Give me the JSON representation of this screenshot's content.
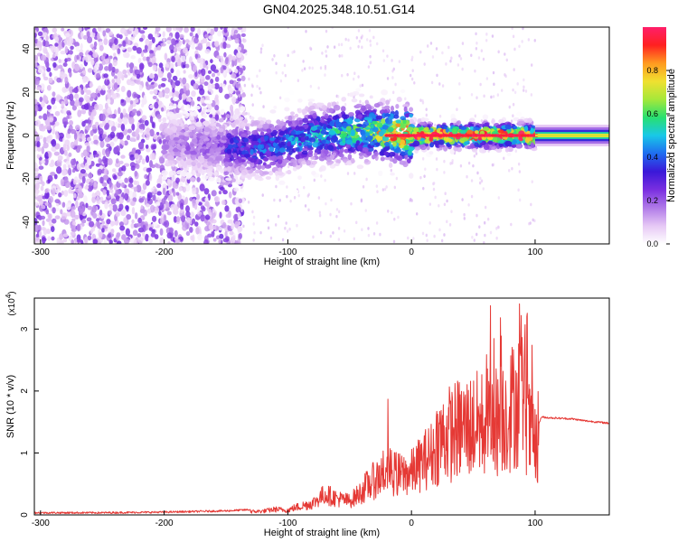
{
  "title": "GN04.2025.348.10.51.G14",
  "colors": {
    "snr_line": "#e53935",
    "colormap": [
      "#ffffff",
      "#e6c8f5",
      "#b07ae8",
      "#7a2fe0",
      "#3a18d8",
      "#1f6cf0",
      "#18c8e8",
      "#28e070",
      "#a6e83a",
      "#f0e030",
      "#ff9a20",
      "#ff2020",
      "#ff1f6a"
    ]
  },
  "chart_data": [
    {
      "type": "heatmap",
      "title": "GN04.2025.348.10.51.G14",
      "xlabel": "Height of straight line (km)",
      "ylabel": "Frequency (Hz)",
      "xlim": [
        -305,
        160
      ],
      "ylim": [
        -50,
        50
      ],
      "xticks": [
        -300,
        -200,
        -100,
        0,
        100
      ],
      "yticks": [
        -40,
        -20,
        0,
        20,
        40
      ],
      "colorbar": {
        "label": "Normalized spectral amplitude",
        "range": [
          0,
          1
        ],
        "ticks": [
          0.0,
          0.2,
          0.4,
          0.6,
          0.8
        ]
      },
      "description_points": [
        {
          "x": -300,
          "y": 0,
          "value": 0.1
        },
        {
          "x": -160,
          "y": -5,
          "value": 0.3
        },
        {
          "x": -120,
          "y": -6,
          "value": 0.4
        },
        {
          "x": -80,
          "y": 0,
          "value": 0.5
        },
        {
          "x": -40,
          "y": 2,
          "value": 0.6
        },
        {
          "x": 0,
          "y": 0,
          "value": 0.95
        },
        {
          "x": 50,
          "y": 0,
          "value": 0.95
        },
        {
          "x": 100,
          "y": 0,
          "value": 0.95
        },
        {
          "x": 160,
          "y": 0,
          "value": 0.5
        }
      ]
    },
    {
      "type": "line",
      "xlabel": "Height of straight line (km)",
      "ylabel": "SNR (10 * v/v)",
      "y_multiplier": "(x10",
      "y_multiplier_exp": "4",
      "xlim": [
        -305,
        160
      ],
      "ylim": [
        0,
        3.5
      ],
      "xticks": [
        -300,
        -200,
        -100,
        0,
        100
      ],
      "yticks": [
        0,
        1,
        2,
        3
      ],
      "series": [
        {
          "x": [
            -305,
            -250,
            -200,
            -150,
            -120,
            -110,
            -100,
            -95,
            -80,
            -70,
            -60,
            -50,
            -40,
            -30,
            -20,
            -10,
            0,
            10,
            20,
            30,
            40,
            50,
            60,
            70,
            80,
            90,
            95,
            100,
            105,
            110,
            120,
            130,
            140,
            150,
            160
          ],
          "y": [
            0.02,
            0.02,
            0.03,
            0.05,
            0.08,
            0.12,
            0.1,
            0.15,
            0.25,
            0.45,
            0.35,
            0.3,
            0.5,
            0.7,
            0.9,
            0.8,
            0.85,
            1.1,
            1.3,
            1.45,
            1.55,
            1.6,
            1.65,
            1.7,
            1.9,
            2.2,
            1.5,
            1.3,
            1.58,
            1.57,
            1.56,
            1.55,
            1.52,
            1.5,
            1.48
          ]
        }
      ]
    }
  ]
}
